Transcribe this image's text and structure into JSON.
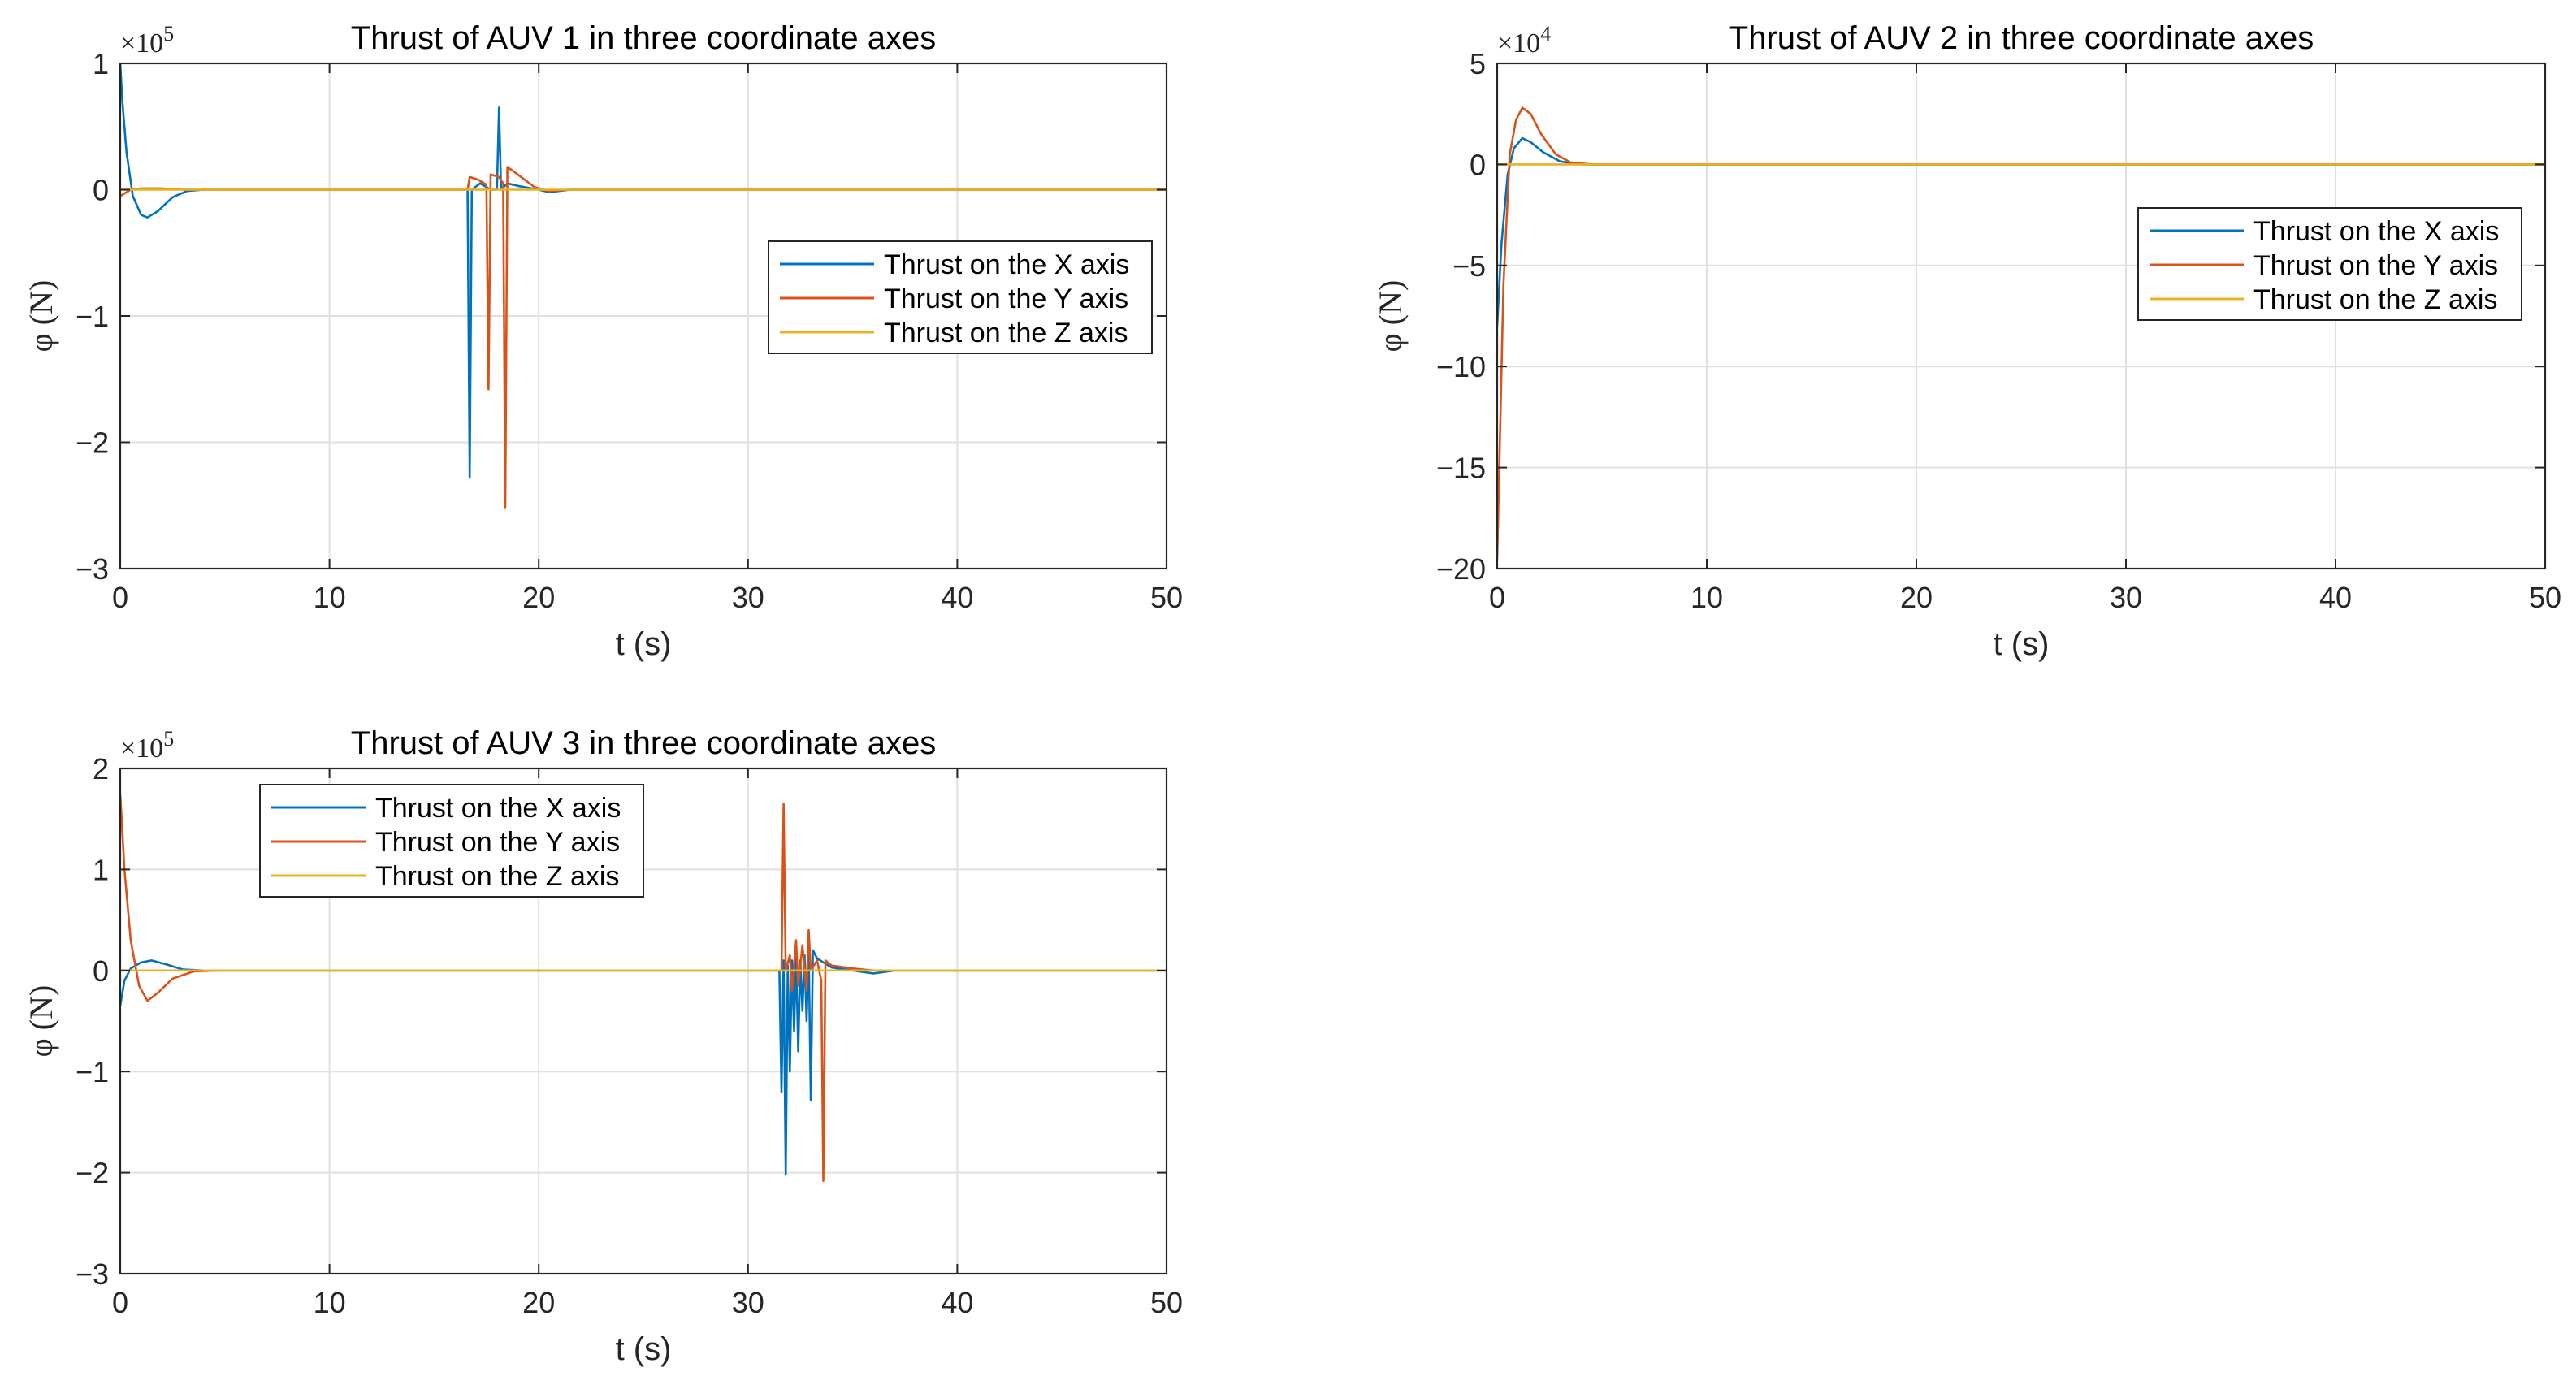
{
  "colors": {
    "x_axis": "#0072BD",
    "y_axis": "#D95319",
    "z_axis": "#EDB120",
    "grid": "#e0e0e0",
    "frame": "#262626",
    "text": "#262626"
  },
  "chart_data": [
    {
      "type": "line",
      "title": "Thrust of AUV 1 in three coordinate axes",
      "xlabel": "t (s)",
      "ylabel": "φ (N)",
      "exponent_base": "×10",
      "exponent_power": "5",
      "xlim": [
        0,
        50
      ],
      "ylim": [
        -3,
        1
      ],
      "xticks": [
        0,
        10,
        20,
        30,
        40,
        50
      ],
      "xtick_labels": [
        "0",
        "10",
        "20",
        "30",
        "40",
        "50"
      ],
      "yticks": [
        -3,
        -2,
        -1,
        0,
        1
      ],
      "ytick_labels": [
        "−3",
        "−2",
        "−1",
        "0",
        "1"
      ],
      "grid": true,
      "legend_position": "center-right",
      "series": [
        {
          "name": "Thrust on the X axis",
          "color": "#0072BD",
          "points": [
            [
              0,
              1.0
            ],
            [
              0.1,
              0.7
            ],
            [
              0.3,
              0.3
            ],
            [
              0.6,
              -0.05
            ],
            [
              1.0,
              -0.2
            ],
            [
              1.3,
              -0.22
            ],
            [
              1.8,
              -0.17
            ],
            [
              2.5,
              -0.06
            ],
            [
              3.2,
              -0.01
            ],
            [
              4,
              0
            ],
            [
              16.6,
              0
            ],
            [
              16.7,
              -2.28
            ],
            [
              16.8,
              0
            ],
            [
              17.2,
              0.05
            ],
            [
              17.6,
              0.01
            ],
            [
              17.7,
              0
            ],
            [
              18,
              0
            ],
            [
              18.1,
              0.65
            ],
            [
              18.2,
              0
            ],
            [
              18.5,
              0.05
            ],
            [
              19,
              0.03
            ],
            [
              20,
              0
            ],
            [
              20.5,
              -0.02
            ],
            [
              21.5,
              0
            ],
            [
              50,
              0
            ]
          ]
        },
        {
          "name": "Thrust on the Y axis",
          "color": "#D95319",
          "points": [
            [
              0,
              -0.05
            ],
            [
              0.5,
              0
            ],
            [
              1,
              0.01
            ],
            [
              2,
              0.01
            ],
            [
              3,
              0
            ],
            [
              16.6,
              0
            ],
            [
              16.7,
              0.1
            ],
            [
              17.1,
              0.08
            ],
            [
              17.5,
              0.04
            ],
            [
              17.6,
              -1.58
            ],
            [
              17.7,
              0.12
            ],
            [
              18.1,
              0.1
            ],
            [
              18.3,
              0.05
            ],
            [
              18.4,
              -2.52
            ],
            [
              18.5,
              0.18
            ],
            [
              19,
              0.12
            ],
            [
              19.8,
              0.02
            ],
            [
              20.5,
              -0.01
            ],
            [
              21.5,
              0
            ],
            [
              50,
              0
            ]
          ]
        },
        {
          "name": "Thrust on the Z axis",
          "color": "#EDB120",
          "points": [
            [
              0,
              0
            ],
            [
              50,
              0
            ]
          ]
        }
      ]
    },
    {
      "type": "line",
      "title": "Thrust of AUV 2 in three coordinate axes",
      "xlabel": "t (s)",
      "ylabel": "φ (N)",
      "exponent_base": "×10",
      "exponent_power": "4",
      "xlim": [
        0,
        50
      ],
      "ylim": [
        -20,
        5
      ],
      "xticks": [
        0,
        10,
        20,
        30,
        40,
        50
      ],
      "xtick_labels": [
        "0",
        "10",
        "20",
        "30",
        "40",
        "50"
      ],
      "yticks": [
        -20,
        -15,
        -10,
        -5,
        0,
        5
      ],
      "ytick_labels": [
        "−20",
        "−15",
        "−10",
        "−5",
        "0",
        "5"
      ],
      "grid": true,
      "legend_position": "top-right",
      "series": [
        {
          "name": "Thrust on the X axis",
          "color": "#0072BD",
          "points": [
            [
              0,
              -8
            ],
            [
              0.2,
              -4
            ],
            [
              0.5,
              -0.5
            ],
            [
              0.8,
              0.8
            ],
            [
              1.2,
              1.3
            ],
            [
              1.6,
              1.1
            ],
            [
              2.2,
              0.6
            ],
            [
              3,
              0.15
            ],
            [
              4,
              0
            ],
            [
              50,
              0
            ]
          ]
        },
        {
          "name": "Thrust on the Y axis",
          "color": "#D95319",
          "points": [
            [
              0,
              -19.5
            ],
            [
              0.1,
              -15
            ],
            [
              0.3,
              -6
            ],
            [
              0.6,
              0.5
            ],
            [
              0.9,
              2.2
            ],
            [
              1.2,
              2.8
            ],
            [
              1.6,
              2.5
            ],
            [
              2.1,
              1.5
            ],
            [
              2.8,
              0.5
            ],
            [
              3.5,
              0.1
            ],
            [
              4.5,
              0
            ],
            [
              50,
              0
            ]
          ]
        },
        {
          "name": "Thrust on the Z axis",
          "color": "#EDB120",
          "points": [
            [
              0,
              0
            ],
            [
              50,
              0
            ]
          ]
        }
      ]
    },
    {
      "type": "line",
      "title": "Thrust of AUV 3 in three coordinate axes",
      "xlabel": "t (s)",
      "ylabel": "φ (N)",
      "exponent_base": "×10",
      "exponent_power": "5",
      "xlim": [
        0,
        50
      ],
      "ylim": [
        -3,
        2
      ],
      "xticks": [
        0,
        10,
        20,
        30,
        40,
        50
      ],
      "xtick_labels": [
        "0",
        "10",
        "20",
        "30",
        "40",
        "50"
      ],
      "yticks": [
        -3,
        -2,
        -1,
        0,
        1,
        2
      ],
      "ytick_labels": [
        "−3",
        "−2",
        "−1",
        "0",
        "1",
        "2"
      ],
      "grid": true,
      "legend_position": "top-left",
      "series": [
        {
          "name": "Thrust on the X axis",
          "color": "#0072BD",
          "points": [
            [
              0,
              -0.35
            ],
            [
              0.2,
              -0.1
            ],
            [
              0.5,
              0.02
            ],
            [
              1,
              0.08
            ],
            [
              1.5,
              0.1
            ],
            [
              2.2,
              0.06
            ],
            [
              3,
              0.01
            ],
            [
              4,
              0
            ],
            [
              31.5,
              0
            ],
            [
              31.6,
              -1.2
            ],
            [
              31.7,
              0.1
            ],
            [
              31.8,
              -2.02
            ],
            [
              31.9,
              0.05
            ],
            [
              32.0,
              -1.0
            ],
            [
              32.1,
              0.1
            ],
            [
              32.2,
              -0.6
            ],
            [
              32.3,
              0.15
            ],
            [
              32.4,
              -0.8
            ],
            [
              32.5,
              0.1
            ],
            [
              32.6,
              -0.4
            ],
            [
              32.7,
              0.15
            ],
            [
              32.8,
              -0.5
            ],
            [
              32.9,
              0.2
            ],
            [
              33.0,
              -1.28
            ],
            [
              33.1,
              0.2
            ],
            [
              33.3,
              0.12
            ],
            [
              33.6,
              0.08
            ],
            [
              34,
              0.03
            ],
            [
              35,
              0
            ],
            [
              36,
              -0.03
            ],
            [
              37,
              0
            ],
            [
              50,
              0
            ]
          ]
        },
        {
          "name": "Thrust on the Y axis",
          "color": "#D95319",
          "points": [
            [
              0,
              1.75
            ],
            [
              0.2,
              1.0
            ],
            [
              0.5,
              0.3
            ],
            [
              0.9,
              -0.15
            ],
            [
              1.3,
              -0.3
            ],
            [
              1.8,
              -0.22
            ],
            [
              2.5,
              -0.08
            ],
            [
              3.5,
              -0.01
            ],
            [
              4.5,
              0
            ],
            [
              31.6,
              0
            ],
            [
              31.7,
              1.65
            ],
            [
              31.8,
              0
            ],
            [
              32.0,
              0.15
            ],
            [
              32.1,
              -0.2
            ],
            [
              32.3,
              0.3
            ],
            [
              32.4,
              -0.15
            ],
            [
              32.6,
              0.25
            ],
            [
              32.8,
              -0.2
            ],
            [
              32.9,
              0.4
            ],
            [
              33.0,
              0
            ],
            [
              33.3,
              0.1
            ],
            [
              33.5,
              -0.1
            ],
            [
              33.6,
              -2.08
            ],
            [
              33.7,
              0.1
            ],
            [
              34,
              0.05
            ],
            [
              35,
              0.02
            ],
            [
              36,
              0
            ],
            [
              50,
              0
            ]
          ]
        },
        {
          "name": "Thrust on the Z axis",
          "color": "#EDB120",
          "points": [
            [
              0,
              0
            ],
            [
              50,
              0
            ]
          ]
        }
      ]
    }
  ]
}
